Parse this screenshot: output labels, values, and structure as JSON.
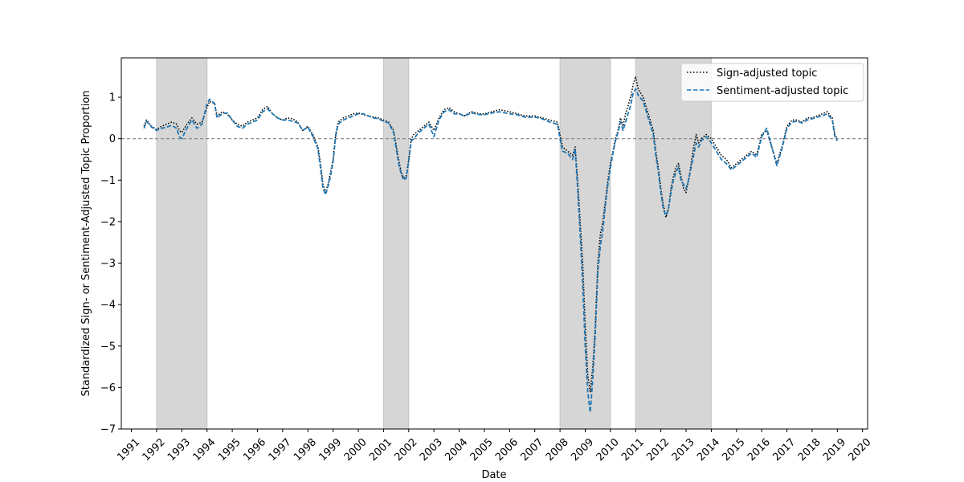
{
  "chart_data": {
    "type": "line",
    "title": "",
    "xlabel": "Date",
    "ylabel": "Standardized Sign- or Sentiment-Adjusted Topic Proportion",
    "xlim": [
      1990.6,
      2020.2
    ],
    "ylim": [
      -7,
      1.95
    ],
    "x_ticks": [
      1991,
      1992,
      1993,
      1994,
      1995,
      1996,
      1997,
      1998,
      1999,
      2000,
      2001,
      2002,
      2003,
      2004,
      2005,
      2006,
      2007,
      2008,
      2009,
      2010,
      2011,
      2012,
      2013,
      2014,
      2015,
      2016,
      2017,
      2018,
      2019,
      2020
    ],
    "x_tick_labels": [
      "1991",
      "1992",
      "1993",
      "1994",
      "1995",
      "1996",
      "1997",
      "1998",
      "1999",
      "2000",
      "2001",
      "2002",
      "2003",
      "2004",
      "2005",
      "2006",
      "2007",
      "2008",
      "2009",
      "2010",
      "2011",
      "2012",
      "2013",
      "2014",
      "2015",
      "2016",
      "2017",
      "2018",
      "2019",
      "2020"
    ],
    "y_ticks": [
      -7,
      -6,
      -5,
      -4,
      -3,
      -2,
      -1,
      0,
      1
    ],
    "y_tick_labels": [
      "−7",
      "−6",
      "−5",
      "−4",
      "−3",
      "−2",
      "−1",
      "0",
      "1"
    ],
    "reference_line": {
      "y": 0,
      "style": "dashed",
      "color": "#808080"
    },
    "shaded_periods": [
      {
        "start": 1992.0,
        "end": 1994.0
      },
      {
        "start": 2001.0,
        "end": 2002.0
      },
      {
        "start": 2008.0,
        "end": 2010.0
      },
      {
        "start": 2011.0,
        "end": 2014.0
      }
    ],
    "shade_color": "#d6d6d6",
    "legend_position": "top-right",
    "series": [
      {
        "name": "Sign-adjusted topic",
        "style": "dotted",
        "color": "#000000",
        "x": [
          1991.5,
          1991.6,
          1991.8,
          1992.0,
          1992.2,
          1992.4,
          1992.6,
          1992.8,
          1992.9,
          1993.0,
          1993.2,
          1993.4,
          1993.6,
          1993.8,
          1994.0,
          1994.1,
          1994.3,
          1994.4,
          1994.6,
          1994.8,
          1995.0,
          1995.2,
          1995.4,
          1995.6,
          1995.8,
          1996.0,
          1996.2,
          1996.4,
          1996.6,
          1996.8,
          1997.0,
          1997.2,
          1997.4,
          1997.6,
          1997.8,
          1998.0,
          1998.2,
          1998.4,
          1998.5,
          1998.6,
          1998.7,
          1998.8,
          1998.9,
          1999.0,
          1999.1,
          1999.2,
          1999.4,
          1999.6,
          1999.8,
          2000.0,
          2000.2,
          2000.4,
          2000.6,
          2000.8,
          2001.0,
          2001.2,
          2001.4,
          2001.6,
          2001.7,
          2001.8,
          2001.9,
          2002.0,
          2002.1,
          2002.2,
          2002.4,
          2002.6,
          2002.8,
          2003.0,
          2003.2,
          2003.4,
          2003.6,
          2003.8,
          2004.0,
          2004.2,
          2004.5,
          2004.8,
          2005.0,
          2005.3,
          2005.6,
          2006.0,
          2006.3,
          2006.6,
          2007.0,
          2007.3,
          2007.6,
          2007.9,
          2008.0,
          2008.1,
          2008.3,
          2008.5,
          2008.6,
          2008.7,
          2008.8,
          2008.9,
          2009.0,
          2009.1,
          2009.2,
          2009.3,
          2009.4,
          2009.5,
          2009.6,
          2009.7,
          2009.8,
          2009.9,
          2010.0,
          2010.1,
          2010.2,
          2010.3,
          2010.4,
          2010.5,
          2010.6,
          2010.7,
          2010.8,
          2010.9,
          2011.0,
          2011.1,
          2011.3,
          2011.5,
          2011.7,
          2011.8,
          2011.9,
          2012.0,
          2012.1,
          2012.2,
          2012.3,
          2012.4,
          2012.5,
          2012.6,
          2012.7,
          2012.8,
          2012.9,
          2013.0,
          2013.1,
          2013.2,
          2013.3,
          2013.4,
          2013.5,
          2013.6,
          2013.8,
          2014.0,
          2014.2,
          2014.4,
          2014.6,
          2014.8,
          2015.0,
          2015.2,
          2015.4,
          2015.6,
          2015.8,
          2016.0,
          2016.2,
          2016.4,
          2016.6,
          2016.8,
          2017.0,
          2017.2,
          2017.4,
          2017.6,
          2017.8,
          2018.0,
          2018.2,
          2018.4,
          2018.6,
          2018.8,
          2018.9,
          2019.0
        ],
        "y": [
          0.3,
          0.45,
          0.3,
          0.22,
          0.3,
          0.35,
          0.4,
          0.35,
          0.2,
          0.15,
          0.35,
          0.5,
          0.35,
          0.4,
          0.75,
          0.9,
          0.85,
          0.55,
          0.65,
          0.6,
          0.45,
          0.35,
          0.3,
          0.4,
          0.45,
          0.5,
          0.7,
          0.78,
          0.6,
          0.5,
          0.45,
          0.5,
          0.48,
          0.4,
          0.2,
          0.3,
          0.1,
          -0.2,
          -0.6,
          -1.1,
          -1.3,
          -1.1,
          -0.8,
          -0.5,
          0.1,
          0.4,
          0.5,
          0.55,
          0.6,
          0.62,
          0.58,
          0.55,
          0.52,
          0.5,
          0.45,
          0.4,
          0.2,
          -0.5,
          -0.8,
          -0.95,
          -0.9,
          -0.5,
          0.0,
          0.1,
          0.2,
          0.3,
          0.4,
          0.2,
          0.5,
          0.7,
          0.75,
          0.65,
          0.6,
          0.55,
          0.65,
          0.6,
          0.6,
          0.65,
          0.7,
          0.65,
          0.6,
          0.55,
          0.55,
          0.5,
          0.45,
          0.4,
          0.1,
          -0.2,
          -0.3,
          -0.4,
          -0.2,
          -1.0,
          -2.0,
          -3.0,
          -4.5,
          -5.7,
          -6.1,
          -5.5,
          -4.5,
          -3.0,
          -2.3,
          -2.0,
          -1.5,
          -1.0,
          -0.6,
          -0.3,
          0.0,
          0.2,
          0.5,
          0.3,
          0.6,
          0.8,
          1.0,
          1.3,
          1.5,
          1.2,
          1.0,
          0.6,
          0.2,
          -0.3,
          -0.7,
          -1.2,
          -1.6,
          -1.9,
          -1.7,
          -1.2,
          -0.9,
          -0.7,
          -0.6,
          -0.9,
          -1.2,
          -1.3,
          -1.0,
          -0.6,
          -0.2,
          0.1,
          -0.1,
          0.0,
          0.1,
          0.0,
          -0.2,
          -0.4,
          -0.5,
          -0.7,
          -0.6,
          -0.5,
          -0.4,
          -0.3,
          -0.4,
          0.1,
          0.2,
          -0.2,
          -0.6,
          -0.2,
          0.3,
          0.45,
          0.45,
          0.4,
          0.5,
          0.5,
          0.55,
          0.6,
          0.65,
          0.5,
          0.1,
          0.0
        ]
      },
      {
        "name": "Sentiment-adjusted topic",
        "style": "dashed",
        "color": "#1f77b4",
        "x": [
          1991.5,
          1991.6,
          1991.8,
          1992.0,
          1992.2,
          1992.4,
          1992.6,
          1992.8,
          1992.9,
          1993.0,
          1993.2,
          1993.4,
          1993.6,
          1993.8,
          1994.0,
          1994.1,
          1994.3,
          1994.4,
          1994.6,
          1994.8,
          1995.0,
          1995.2,
          1995.4,
          1995.6,
          1995.8,
          1996.0,
          1996.2,
          1996.4,
          1996.6,
          1996.8,
          1997.0,
          1997.2,
          1997.4,
          1997.6,
          1997.8,
          1998.0,
          1998.2,
          1998.4,
          1998.5,
          1998.6,
          1998.7,
          1998.8,
          1998.9,
          1999.0,
          1999.1,
          1999.2,
          1999.4,
          1999.6,
          1999.8,
          2000.0,
          2000.2,
          2000.4,
          2000.6,
          2000.8,
          2001.0,
          2001.2,
          2001.4,
          2001.6,
          2001.7,
          2001.8,
          2001.9,
          2002.0,
          2002.1,
          2002.2,
          2002.4,
          2002.6,
          2002.8,
          2003.0,
          2003.2,
          2003.4,
          2003.6,
          2003.8,
          2004.0,
          2004.2,
          2004.5,
          2004.8,
          2005.0,
          2005.3,
          2005.6,
          2006.0,
          2006.3,
          2006.6,
          2007.0,
          2007.3,
          2007.6,
          2007.9,
          2008.0,
          2008.1,
          2008.3,
          2008.5,
          2008.6,
          2008.7,
          2008.8,
          2008.9,
          2009.0,
          2009.1,
          2009.2,
          2009.3,
          2009.4,
          2009.5,
          2009.6,
          2009.7,
          2009.8,
          2009.9,
          2010.0,
          2010.1,
          2010.2,
          2010.3,
          2010.4,
          2010.5,
          2010.6,
          2010.7,
          2010.8,
          2010.9,
          2011.0,
          2011.1,
          2011.3,
          2011.5,
          2011.7,
          2011.8,
          2011.9,
          2012.0,
          2012.1,
          2012.2,
          2012.3,
          2012.4,
          2012.5,
          2012.6,
          2012.7,
          2012.8,
          2012.9,
          2013.0,
          2013.1,
          2013.2,
          2013.3,
          2013.4,
          2013.5,
          2013.6,
          2013.8,
          2014.0,
          2014.2,
          2014.4,
          2014.6,
          2014.8,
          2015.0,
          2015.2,
          2015.4,
          2015.6,
          2015.8,
          2016.0,
          2016.2,
          2016.4,
          2016.6,
          2016.8,
          2017.0,
          2017.2,
          2017.4,
          2017.6,
          2017.8,
          2018.0,
          2018.2,
          2018.4,
          2018.6,
          2018.8,
          2018.9,
          2019.0
        ],
        "y": [
          0.25,
          0.42,
          0.28,
          0.2,
          0.25,
          0.28,
          0.32,
          0.25,
          0.05,
          0.0,
          0.25,
          0.45,
          0.25,
          0.35,
          0.85,
          0.95,
          0.85,
          0.5,
          0.6,
          0.62,
          0.45,
          0.3,
          0.25,
          0.35,
          0.4,
          0.45,
          0.65,
          0.72,
          0.6,
          0.5,
          0.45,
          0.45,
          0.42,
          0.38,
          0.2,
          0.28,
          0.05,
          -0.25,
          -0.7,
          -1.2,
          -1.35,
          -1.15,
          -0.9,
          -0.55,
          0.05,
          0.35,
          0.45,
          0.5,
          0.55,
          0.6,
          0.6,
          0.55,
          0.5,
          0.48,
          0.42,
          0.38,
          0.15,
          -0.6,
          -0.85,
          -1.0,
          -0.95,
          -0.55,
          -0.05,
          0.0,
          0.15,
          0.25,
          0.35,
          0.05,
          0.45,
          0.65,
          0.7,
          0.6,
          0.6,
          0.55,
          0.62,
          0.58,
          0.58,
          0.62,
          0.65,
          0.6,
          0.58,
          0.52,
          0.52,
          0.48,
          0.4,
          0.35,
          0.0,
          -0.3,
          -0.35,
          -0.5,
          -0.25,
          -1.2,
          -2.3,
          -3.5,
          -5.0,
          -6.1,
          -6.6,
          -5.8,
          -4.7,
          -3.2,
          -2.6,
          -2.2,
          -1.6,
          -1.1,
          -0.7,
          -0.35,
          -0.05,
          0.15,
          0.4,
          0.2,
          0.4,
          0.6,
          0.8,
          1.1,
          1.2,
          1.05,
          0.9,
          0.5,
          0.1,
          -0.4,
          -0.8,
          -1.3,
          -1.7,
          -1.85,
          -1.7,
          -1.3,
          -1.0,
          -0.8,
          -0.7,
          -1.0,
          -1.1,
          -1.2,
          -1.0,
          -0.7,
          -0.4,
          -0.1,
          -0.2,
          -0.05,
          0.05,
          -0.1,
          -0.3,
          -0.5,
          -0.6,
          -0.75,
          -0.65,
          -0.55,
          -0.45,
          -0.35,
          -0.45,
          0.05,
          0.25,
          -0.2,
          -0.65,
          -0.25,
          0.25,
          0.4,
          0.42,
          0.38,
          0.45,
          0.48,
          0.52,
          0.55,
          0.6,
          0.45,
          0.05,
          -0.05
        ]
      }
    ]
  }
}
